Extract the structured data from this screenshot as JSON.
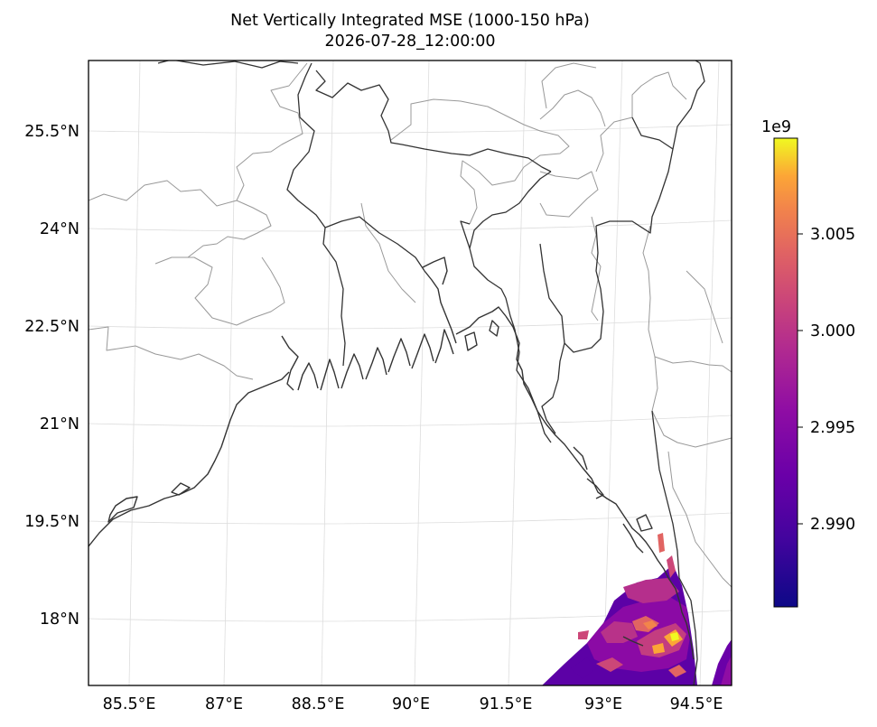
{
  "title": {
    "line1": "Net Vertically Integrated MSE (1000-150 hPa)",
    "line2": "2026-07-28_12:00:00"
  },
  "map": {
    "lon_ticks": [
      "85.5°E",
      "87°E",
      "88.5°E",
      "90°E",
      "91.5°E",
      "93°E",
      "94.5°E"
    ],
    "lat_ticks": [
      "25.5°N",
      "24°N",
      "22.5°N",
      "21°N",
      "19.5°N",
      "18°N"
    ],
    "extent": {
      "lon": [
        84.8,
        94.7
      ],
      "lat": [
        17.0,
        26.7
      ]
    },
    "colors": {
      "coastline": "#333333",
      "borders": "#999999",
      "gridlines": "#dddddd"
    }
  },
  "colorbar": {
    "exponent": "1e9",
    "ticks": [
      "3.005",
      "3.000",
      "2.995",
      "2.990"
    ],
    "tick_values": [
      3.005,
      3.0,
      2.995,
      2.99
    ],
    "range": [
      2.9855,
      3.0097
    ],
    "colormap": "plasma",
    "colors": [
      "#0d0887",
      "#5c01a6",
      "#9c179e",
      "#cc4778",
      "#ed7953",
      "#fdb42f",
      "#f0f921"
    ]
  }
}
